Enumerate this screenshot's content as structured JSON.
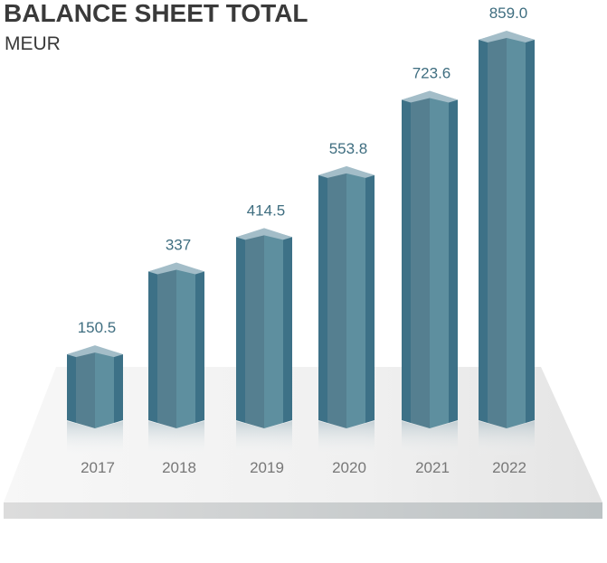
{
  "chart_data": {
    "type": "bar",
    "title": "BALANCE SHEET TOTAL",
    "subtitle": "MEUR",
    "categories": [
      "2017",
      "2018",
      "2019",
      "2020",
      "2021",
      "2022"
    ],
    "values": [
      150.5,
      337,
      414.5,
      553.8,
      723.6,
      859.0
    ],
    "value_labels": [
      "150.5",
      "337",
      "414.5",
      "553.8",
      "723.6",
      "859.0"
    ],
    "ylim": [
      0,
      900
    ],
    "grid": false,
    "legend": "none",
    "colors": {
      "bar_face": "#5e8f9f",
      "bar_side": "#3d7187",
      "bar_top": "#a3bdc8",
      "value_text": "#3f6e80",
      "category_text": "#777777"
    }
  }
}
